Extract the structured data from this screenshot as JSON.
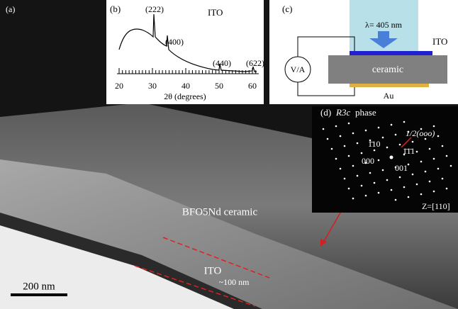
{
  "panel_a": {
    "label": "(a)",
    "material_label": "BFO5Nd ceramic",
    "layer_label": "ITO",
    "thickness_label": "~100 nm",
    "scale_bar": "200 nm"
  },
  "panel_b": {
    "label": "(b)",
    "title": "ITO",
    "peaks": [
      "(222)",
      "(400)",
      "(440)",
      "(622)"
    ],
    "xticks": [
      20,
      30,
      40,
      50,
      60
    ],
    "xlabel": "2θ (degrees)"
  },
  "panel_c": {
    "label": "(c)",
    "light": "λ= 405 nm",
    "top_layer": "ITO",
    "meter": "V/A",
    "substrate": "ceramic",
    "bottom_layer": "Au"
  },
  "panel_d": {
    "label": "(d)",
    "phase_symbol": "R3c",
    "phase_word": "phase",
    "spot_superlattice": "1/2(ooo)",
    "spot_1": "1̄10",
    "spot_2": "1̄1̄1",
    "spot_3": "000",
    "spot_4": "001",
    "zone_axis": "Z=[110]"
  }
}
